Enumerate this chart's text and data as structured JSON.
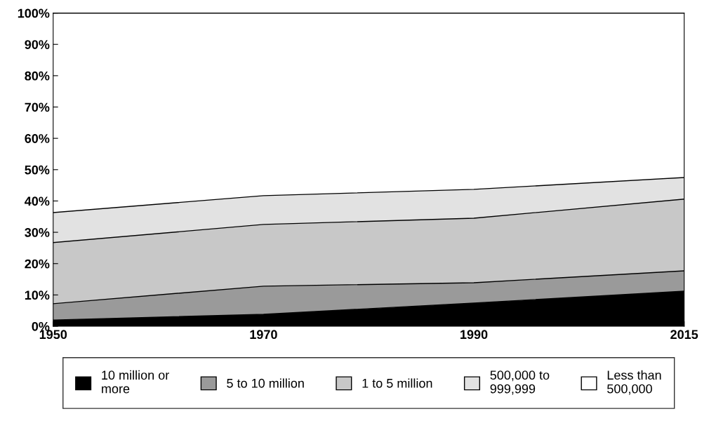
{
  "chart_data": {
    "type": "area",
    "stacked": true,
    "categories": [
      "1950",
      "1970",
      "1990",
      "2015"
    ],
    "series": [
      {
        "name": "10 million or\nmore",
        "color": "#000000",
        "values": [
          2,
          3.8,
          7.4,
          11.2
        ]
      },
      {
        "name": "5 to 10 million",
        "color": "#9a9a9a",
        "values": [
          5.2,
          9,
          6.5,
          6.5
        ]
      },
      {
        "name": "1 to 5 million",
        "color": "#c8c8c8",
        "values": [
          19.5,
          19.7,
          20.6,
          22.9
        ]
      },
      {
        "name": "500,000 to\n999,999",
        "color": "#e2e2e2",
        "values": [
          9.6,
          9.2,
          9.2,
          6.9
        ]
      },
      {
        "name": "Less than\n500,000",
        "color": "#ffffff",
        "values": [
          63.7,
          58.3,
          56.3,
          52.5
        ]
      }
    ],
    "ylim": [
      0,
      100
    ],
    "yticks": [
      {
        "value": 0,
        "label": "0%"
      },
      {
        "value": 10,
        "label": "10%"
      },
      {
        "value": 20,
        "label": "20%"
      },
      {
        "value": 30,
        "label": "30%"
      },
      {
        "value": 40,
        "label": "40%"
      },
      {
        "value": 50,
        "label": "50%"
      },
      {
        "value": 60,
        "label": "60%"
      },
      {
        "value": 70,
        "label": "70%"
      },
      {
        "value": 80,
        "label": "80%"
      },
      {
        "value": 90,
        "label": "90%"
      },
      {
        "value": 100,
        "label": "100%"
      }
    ],
    "legend": "bottom",
    "grid": false
  }
}
